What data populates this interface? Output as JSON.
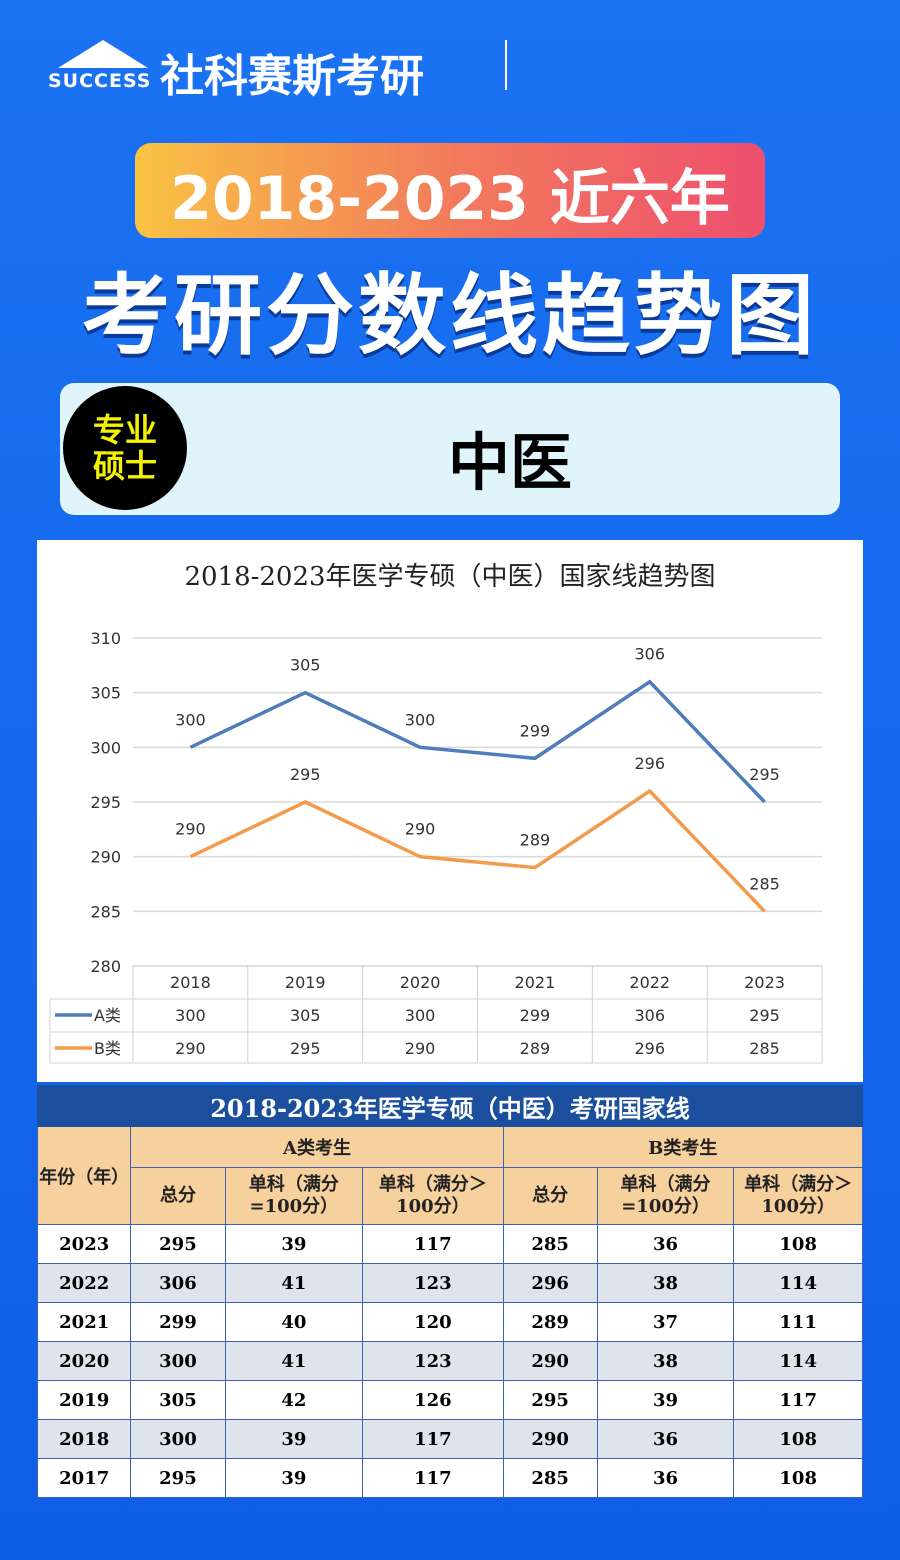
{
  "header": {
    "logo_text": "SUCCESS",
    "brand": "社科赛斯考研",
    "banner_top": "2018-2023 近六年",
    "banner_main": "考研分数线趋势图",
    "badge_lines": [
      "专业",
      "硕士"
    ],
    "subject": "中医"
  },
  "chart_data": {
    "type": "line",
    "title": "2018-2023年医学专硕（中医）国家线趋势图",
    "categories": [
      "2018",
      "2019",
      "2020",
      "2021",
      "2022",
      "2023"
    ],
    "series": [
      {
        "name": "A类",
        "color": "#4f7dbb",
        "values": [
          300,
          305,
          300,
          299,
          306,
          295
        ]
      },
      {
        "name": "B类",
        "color": "#f39a4b",
        "values": [
          290,
          295,
          290,
          289,
          296,
          285
        ]
      }
    ],
    "ylim": [
      280,
      310
    ],
    "yticks": [
      280,
      285,
      290,
      295,
      300,
      305,
      310
    ],
    "grid": true
  },
  "table": {
    "title": "2018-2023年医学专硕（中医）考研国家线",
    "year_header": "年份（年）",
    "group_headers": [
      "A类考生",
      "B类考生"
    ],
    "sub_headers": [
      "总分",
      "单科（满分=100分）",
      "单科（满分＞100分）",
      "总分",
      "单科（满分=100分）",
      "单科（满分＞100分）"
    ],
    "rows": [
      [
        "2023",
        "295",
        "39",
        "117",
        "285",
        "36",
        "108"
      ],
      [
        "2022",
        "306",
        "41",
        "123",
        "296",
        "38",
        "114"
      ],
      [
        "2021",
        "299",
        "40",
        "120",
        "289",
        "37",
        "111"
      ],
      [
        "2020",
        "300",
        "41",
        "123",
        "290",
        "38",
        "114"
      ],
      [
        "2019",
        "305",
        "42",
        "126",
        "295",
        "39",
        "117"
      ],
      [
        "2018",
        "300",
        "39",
        "117",
        "290",
        "36",
        "108"
      ],
      [
        "2017",
        "295",
        "39",
        "117",
        "285",
        "36",
        "108"
      ]
    ]
  }
}
